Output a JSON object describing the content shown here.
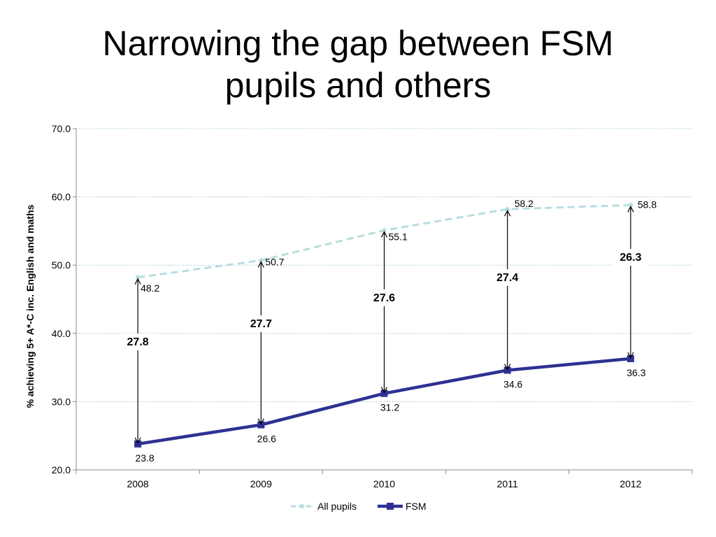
{
  "title_line1": "Narrowing the gap between FSM",
  "title_line2": "pupils and others",
  "chart_data": {
    "type": "line",
    "title": "Narrowing the gap between FSM pupils and others",
    "xlabel": "",
    "ylabel": "% achieving 5+ A*-C inc. English and maths",
    "categories": [
      "2008",
      "2009",
      "2010",
      "2011",
      "2012"
    ],
    "ylim": [
      20,
      70
    ],
    "yticks": [
      "20.0",
      "30.0",
      "40.0",
      "50.0",
      "60.0",
      "70.0"
    ],
    "grid": true,
    "legend_position": "bottom",
    "series": [
      {
        "name": "All pupils",
        "values": [
          48.2,
          50.7,
          55.1,
          58.2,
          58.8
        ],
        "labels": [
          "48.2",
          "50.7",
          "55.1",
          "58.2",
          "58.8"
        ],
        "color": "#b7dde0",
        "style": "dashed"
      },
      {
        "name": "FSM",
        "values": [
          23.8,
          26.6,
          31.2,
          34.6,
          36.3
        ],
        "labels": [
          "23.8",
          "26.6",
          "31.2",
          "34.6",
          "36.3"
        ],
        "color": "#2e3192",
        "style": "solid"
      }
    ],
    "gaps": [
      "27.8",
      "27.7",
      "27.6",
      "27.4",
      "26.3"
    ],
    "gap_values": [
      27.8,
      27.7,
      27.6,
      27.4,
      26.3
    ]
  }
}
